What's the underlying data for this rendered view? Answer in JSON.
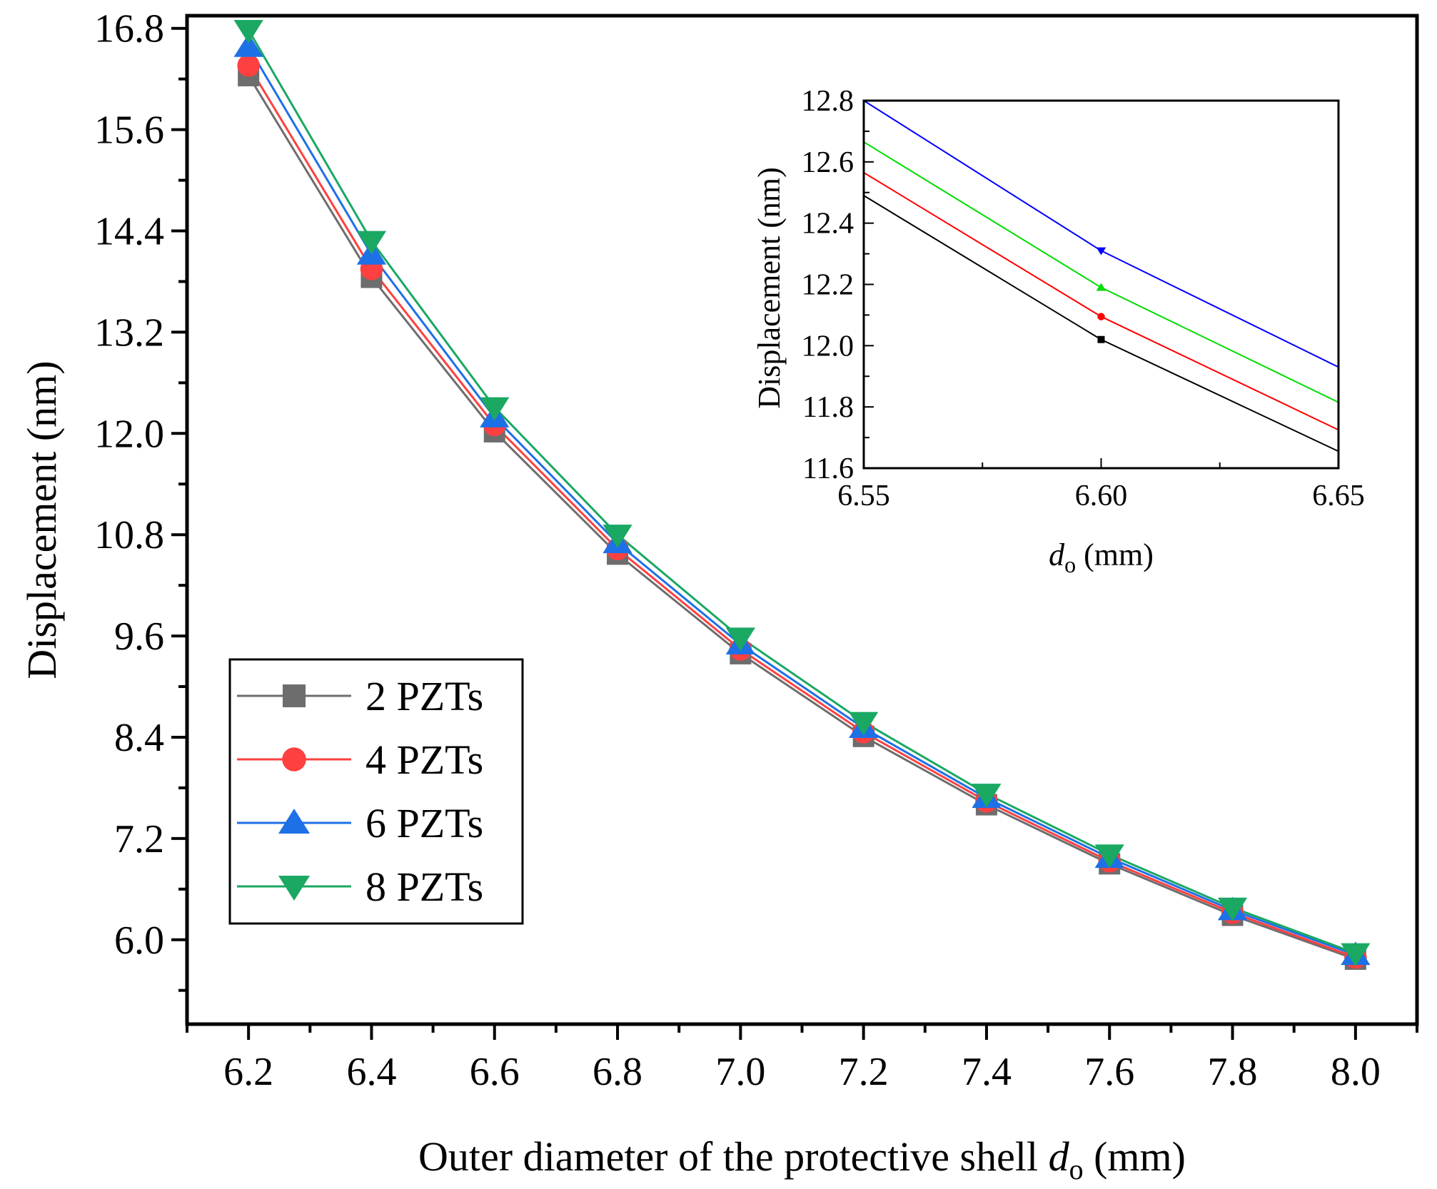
{
  "chart_data": [
    {
      "type": "line",
      "title": "",
      "xlabel": "Outer diameter of the protective shell",
      "xlabel_symbol": "d",
      "xlabel_subscript": "o",
      "xlabel_unit": "(mm)",
      "ylabel": "Displacement (nm)",
      "xlim": [
        6.1,
        8.1
      ],
      "ylim": [
        5.0,
        16.95
      ],
      "x_ticks": [
        6.2,
        6.4,
        6.6,
        6.8,
        7.0,
        7.2,
        7.4,
        7.6,
        7.8,
        8.0
      ],
      "x_tick_labels": [
        "6.2",
        "6.4",
        "6.6",
        "6.8",
        "7.0",
        "7.2",
        "7.4",
        "7.6",
        "7.8",
        "8.0"
      ],
      "y_ticks": [
        6.0,
        7.2,
        8.4,
        9.6,
        10.8,
        12.0,
        13.2,
        14.4,
        15.6,
        16.8
      ],
      "y_tick_labels": [
        "6.0",
        "7.2",
        "8.4",
        "9.6",
        "10.8",
        "12.0",
        "13.2",
        "14.4",
        "15.6",
        "16.8"
      ],
      "grid": false,
      "legend_position": "lower-left",
      "x": [
        6.2,
        6.4,
        6.6,
        6.8,
        7.0,
        7.2,
        7.4,
        7.6,
        7.8,
        8.0
      ],
      "series": [
        {
          "name": "2 PZTs",
          "marker": "square",
          "color": "#6d6d6d",
          "values": [
            16.24,
            13.85,
            12.02,
            10.57,
            9.39,
            8.41,
            7.6,
            6.9,
            6.29,
            5.77
          ]
        },
        {
          "name": "4 PZTs",
          "marker": "circle",
          "color": "#ff4040",
          "values": [
            16.36,
            13.95,
            12.1,
            10.63,
            9.44,
            8.46,
            7.64,
            6.93,
            6.32,
            5.79
          ]
        },
        {
          "name": "6 PZTs",
          "marker": "triangle-up",
          "color": "#1e70e6",
          "values": [
            16.58,
            14.12,
            12.19,
            10.7,
            9.5,
            8.51,
            7.68,
            6.97,
            6.35,
            5.82
          ]
        },
        {
          "name": "8 PZTs",
          "marker": "triangle-down",
          "color": "#1aa862",
          "values": [
            16.78,
            14.28,
            12.31,
            10.8,
            9.58,
            8.58,
            7.73,
            7.01,
            6.38,
            5.84
          ]
        }
      ]
    },
    {
      "type": "line",
      "title": "",
      "xlabel_symbol": "d",
      "xlabel_subscript": "o",
      "xlabel_unit": "(mm)",
      "ylabel": "Displacement (nm)",
      "xlim": [
        6.55,
        6.65
      ],
      "ylim": [
        11.6,
        12.8
      ],
      "x_ticks": [
        6.55,
        6.6,
        6.65
      ],
      "x_tick_labels": [
        "6.55",
        "6.60",
        "6.65"
      ],
      "y_ticks": [
        11.6,
        11.8,
        12.0,
        12.2,
        12.4,
        12.6,
        12.8
      ],
      "y_tick_labels": [
        "11.6",
        "11.8",
        "12.0",
        "12.2",
        "12.4",
        "12.6",
        "12.8"
      ],
      "grid": false,
      "legend_position": "none",
      "series": [
        {
          "name": "black",
          "color": "#000000",
          "marker": "square",
          "x": [
            6.55,
            6.6,
            6.65
          ],
          "values": [
            12.49,
            12.02,
            11.655
          ],
          "marker_index": 1
        },
        {
          "name": "red",
          "color": "#ff0000",
          "marker": "circle",
          "x": [
            6.55,
            6.6,
            6.65
          ],
          "values": [
            12.565,
            12.095,
            11.725
          ],
          "marker_index": 1
        },
        {
          "name": "green",
          "color": "#00dd00",
          "marker": "triangle-up",
          "x": [
            6.55,
            6.6,
            6.65
          ],
          "values": [
            12.665,
            12.19,
            11.815
          ],
          "marker_index": 1
        },
        {
          "name": "blue",
          "color": "#0000ff",
          "marker": "triangle-down",
          "x": [
            6.55,
            6.6,
            6.65
          ],
          "values": [
            12.8,
            12.31,
            11.93
          ],
          "marker_index": 1
        }
      ]
    }
  ]
}
